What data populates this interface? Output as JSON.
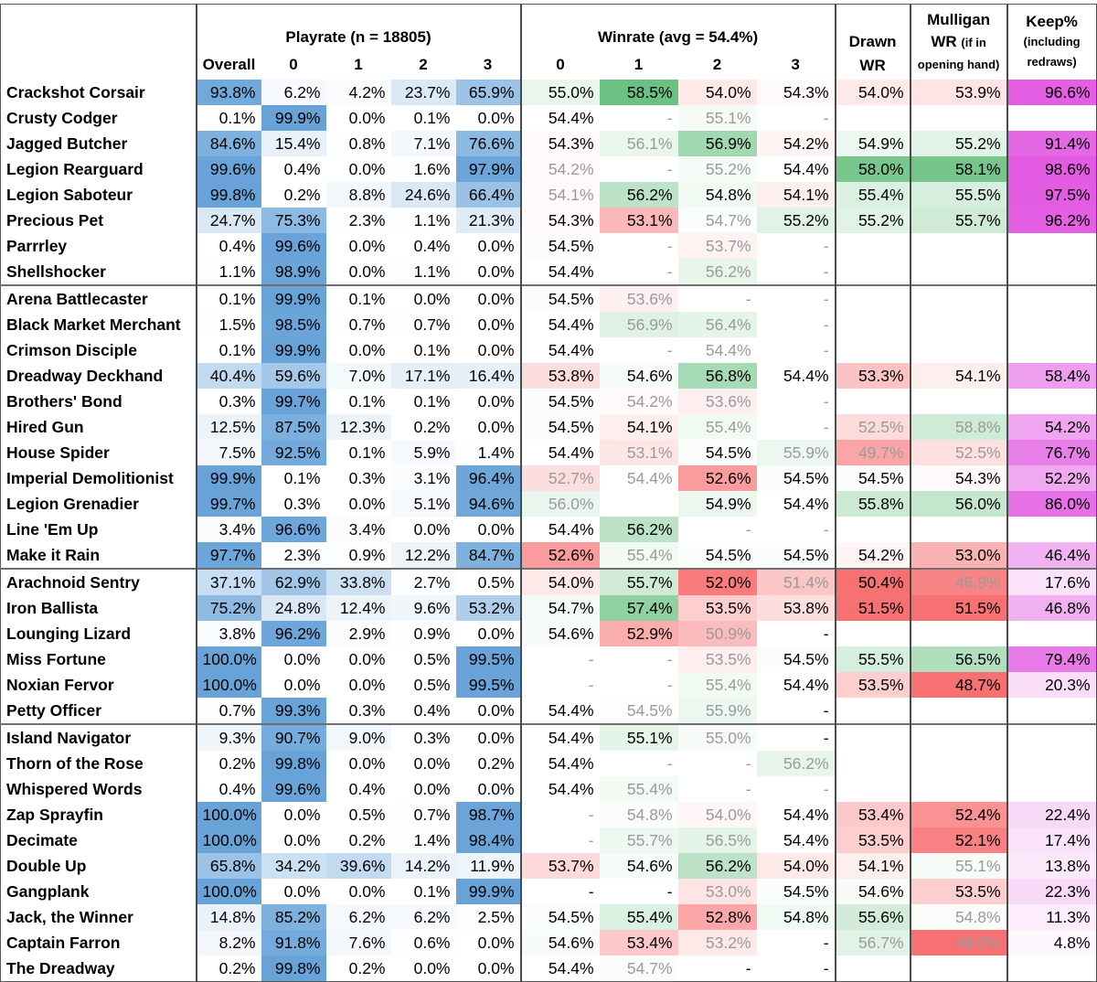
{
  "headers": {
    "playrate_group": "Playrate (n = 18805)",
    "winrate_group": "Winrate (avg = 54.4%)",
    "overall": "Overall",
    "sub_cols": [
      "0",
      "1",
      "2",
      "3"
    ],
    "drawn_line1": "Drawn",
    "drawn_line2": "WR",
    "mulligan_line1": "Mulligan",
    "mulligan_line2a": "WR",
    "mulligan_line2b": "(if in",
    "mulligan_line3": "opening hand)",
    "keep_line1": "Keep%",
    "keep_line2": "(including",
    "keep_line3": "redraws)"
  },
  "colors": {
    "blue": "#5b9bd5",
    "green": "#63be7b",
    "red": "#f8696b",
    "magenta": "#e050e0"
  },
  "groups": [
    [
      {
        "name": "Crackshot Corsair",
        "play": [
          "93.8%",
          "6.2%",
          "4.2%",
          "23.7%",
          "65.9%"
        ],
        "win": [
          "55.0%",
          "58.5%",
          "54.0%",
          "54.3%"
        ],
        "drawn": "54.0%",
        "mull": "53.9%",
        "keep": "96.6%"
      },
      {
        "name": "Crusty Codger",
        "play": [
          "0.1%",
          "99.9%",
          "0.0%",
          "0.1%",
          "0.0%"
        ],
        "win": [
          "54.4%",
          "-",
          "55.1%",
          "-"
        ],
        "drawn": "",
        "mull": "",
        "keep": ""
      },
      {
        "name": "Jagged Butcher",
        "play": [
          "84.6%",
          "15.4%",
          "0.8%",
          "7.1%",
          "76.6%"
        ],
        "win": [
          "54.3%",
          "56.1%",
          "56.9%",
          "54.2%"
        ],
        "drawn": "54.9%",
        "mull": "55.2%",
        "keep": "91.4%"
      },
      {
        "name": "Legion Rearguard",
        "play": [
          "99.6%",
          "0.4%",
          "0.0%",
          "1.6%",
          "97.9%"
        ],
        "win": [
          "54.2%",
          "-",
          "55.2%",
          "54.4%"
        ],
        "drawn": "58.0%",
        "mull": "58.1%",
        "keep": "98.6%"
      },
      {
        "name": "Legion Saboteur",
        "play": [
          "99.8%",
          "0.2%",
          "8.8%",
          "24.6%",
          "66.4%"
        ],
        "win": [
          "54.1%",
          "56.2%",
          "54.8%",
          "54.1%"
        ],
        "drawn": "55.4%",
        "mull": "55.5%",
        "keep": "97.5%"
      },
      {
        "name": "Precious Pet",
        "play": [
          "24.7%",
          "75.3%",
          "2.3%",
          "1.1%",
          "21.3%"
        ],
        "win": [
          "54.3%",
          "53.1%",
          "54.7%",
          "55.2%"
        ],
        "drawn": "55.2%",
        "mull": "55.7%",
        "keep": "96.2%"
      },
      {
        "name": "Parrrley",
        "play": [
          "0.4%",
          "99.6%",
          "0.0%",
          "0.4%",
          "0.0%"
        ],
        "win": [
          "54.5%",
          "-",
          "53.7%",
          "-"
        ],
        "drawn": "",
        "mull": "",
        "keep": ""
      },
      {
        "name": "Shellshocker",
        "play": [
          "1.1%",
          "98.9%",
          "0.0%",
          "1.1%",
          "0.0%"
        ],
        "win": [
          "54.4%",
          "-",
          "56.2%",
          "-"
        ],
        "drawn": "",
        "mull": "",
        "keep": ""
      }
    ],
    [
      {
        "name": "Arena Battlecaster",
        "play": [
          "0.1%",
          "99.9%",
          "0.1%",
          "0.0%",
          "0.0%"
        ],
        "win": [
          "54.5%",
          "53.6%",
          "-",
          "-"
        ],
        "drawn": "",
        "mull": "",
        "keep": ""
      },
      {
        "name": "Black Market Merchant",
        "play": [
          "1.5%",
          "98.5%",
          "0.7%",
          "0.7%",
          "0.0%"
        ],
        "win": [
          "54.4%",
          "56.9%",
          "56.4%",
          "-"
        ],
        "drawn": "",
        "mull": "",
        "keep": ""
      },
      {
        "name": "Crimson Disciple",
        "play": [
          "0.1%",
          "99.9%",
          "0.0%",
          "0.1%",
          "0.0%"
        ],
        "win": [
          "54.4%",
          "-",
          "54.4%",
          "-"
        ],
        "drawn": "",
        "mull": "",
        "keep": ""
      },
      {
        "name": "Dreadway Deckhand",
        "play": [
          "40.4%",
          "59.6%",
          "7.0%",
          "17.1%",
          "16.4%"
        ],
        "win": [
          "53.8%",
          "54.6%",
          "56.8%",
          "54.4%"
        ],
        "drawn": "53.3%",
        "mull": "54.1%",
        "keep": "58.4%"
      },
      {
        "name": "Brothers' Bond",
        "play": [
          "0.3%",
          "99.7%",
          "0.1%",
          "0.1%",
          "0.0%"
        ],
        "win": [
          "54.5%",
          "54.2%",
          "53.6%",
          "-"
        ],
        "drawn": "",
        "mull": "",
        "keep": ""
      },
      {
        "name": "Hired Gun",
        "play": [
          "12.5%",
          "87.5%",
          "12.3%",
          "0.2%",
          "0.0%"
        ],
        "win": [
          "54.5%",
          "54.1%",
          "55.4%",
          "-"
        ],
        "drawn": "52.5%",
        "mull": "58.8%",
        "keep": "54.2%"
      },
      {
        "name": "House Spider",
        "play": [
          "7.5%",
          "92.5%",
          "0.1%",
          "5.9%",
          "1.4%"
        ],
        "win": [
          "54.4%",
          "53.1%",
          "54.5%",
          "55.9%"
        ],
        "drawn": "49.7%",
        "mull": "52.5%",
        "keep": "76.7%"
      },
      {
        "name": "Imperial Demolitionist",
        "play": [
          "99.9%",
          "0.1%",
          "0.3%",
          "3.1%",
          "96.4%"
        ],
        "win": [
          "52.7%",
          "54.4%",
          "52.6%",
          "54.5%"
        ],
        "drawn": "54.5%",
        "mull": "54.3%",
        "keep": "52.2%"
      },
      {
        "name": "Legion Grenadier",
        "play": [
          "99.7%",
          "0.3%",
          "0.0%",
          "5.1%",
          "94.6%"
        ],
        "win": [
          "56.0%",
          "",
          "54.9%",
          "54.4%"
        ],
        "drawn": "55.8%",
        "mull": "56.0%",
        "keep": "86.0%"
      },
      {
        "name": "Line 'Em Up",
        "play": [
          "3.4%",
          "96.6%",
          "3.4%",
          "0.0%",
          "0.0%"
        ],
        "win": [
          "54.4%",
          "56.2%",
          "-",
          "-"
        ],
        "drawn": "",
        "mull": "",
        "keep": ""
      },
      {
        "name": "Make it Rain",
        "play": [
          "97.7%",
          "2.3%",
          "0.9%",
          "12.2%",
          "84.7%"
        ],
        "win": [
          "52.6%",
          "55.4%",
          "54.5%",
          "54.5%"
        ],
        "drawn": "54.2%",
        "mull": "53.0%",
        "keep": "46.4%"
      }
    ],
    [
      {
        "name": "Arachnoid Sentry",
        "play": [
          "37.1%",
          "62.9%",
          "33.8%",
          "2.7%",
          "0.5%"
        ],
        "win": [
          "54.0%",
          "55.7%",
          "52.0%",
          "51.4%"
        ],
        "drawn": "50.4%",
        "mull": "46.9%",
        "keep": "17.6%"
      },
      {
        "name": "Iron Ballista",
        "play": [
          "75.2%",
          "24.8%",
          "12.4%",
          "9.6%",
          "53.2%"
        ],
        "win": [
          "54.7%",
          "57.4%",
          "53.5%",
          "53.8%"
        ],
        "drawn": "51.5%",
        "mull": "51.5%",
        "keep": "46.8%"
      },
      {
        "name": "Lounging Lizard",
        "play": [
          "3.8%",
          "96.2%",
          "2.9%",
          "0.9%",
          "0.0%"
        ],
        "win": [
          "54.6%",
          "52.9%",
          "50.9%",
          "-"
        ],
        "drawn": "",
        "mull": "",
        "keep": ""
      },
      {
        "name": "Miss Fortune",
        "play": [
          "100.0%",
          "0.0%",
          "0.0%",
          "0.5%",
          "99.5%"
        ],
        "win": [
          "-",
          "-",
          "53.5%",
          "54.5%"
        ],
        "drawn": "55.5%",
        "mull": "56.5%",
        "keep": "79.4%"
      },
      {
        "name": "Noxian Fervor",
        "play": [
          "100.0%",
          "0.0%",
          "0.0%",
          "0.5%",
          "99.5%"
        ],
        "win": [
          "-",
          "-",
          "55.4%",
          "54.4%"
        ],
        "drawn": "53.5%",
        "mull": "48.7%",
        "keep": "20.3%"
      },
      {
        "name": "Petty Officer",
        "play": [
          "0.7%",
          "99.3%",
          "0.3%",
          "0.4%",
          "0.0%"
        ],
        "win": [
          "54.4%",
          "54.5%",
          "55.9%",
          "-"
        ],
        "drawn": "",
        "mull": "",
        "keep": ""
      }
    ],
    [
      {
        "name": "Island Navigator",
        "play": [
          "9.3%",
          "90.7%",
          "9.0%",
          "0.3%",
          "0.0%"
        ],
        "win": [
          "54.4%",
          "55.1%",
          "55.0%",
          "-"
        ],
        "drawn": "",
        "mull": "",
        "keep": ""
      },
      {
        "name": "Thorn of the Rose",
        "play": [
          "0.2%",
          "99.8%",
          "0.0%",
          "0.0%",
          "0.2%"
        ],
        "win": [
          "54.4%",
          "-",
          "-",
          "56.2%"
        ],
        "drawn": "",
        "mull": "",
        "keep": ""
      },
      {
        "name": "Whispered Words",
        "play": [
          "0.4%",
          "99.6%",
          "0.4%",
          "0.0%",
          "0.0%"
        ],
        "win": [
          "54.4%",
          "55.4%",
          "-",
          "-"
        ],
        "drawn": "",
        "mull": "",
        "keep": ""
      },
      {
        "name": "Zap Sprayfin",
        "play": [
          "100.0%",
          "0.0%",
          "0.5%",
          "0.7%",
          "98.7%"
        ],
        "win": [
          "-",
          "54.8%",
          "54.0%",
          "54.4%"
        ],
        "drawn": "53.4%",
        "mull": "52.4%",
        "keep": "22.4%"
      },
      {
        "name": "Decimate",
        "play": [
          "100.0%",
          "0.0%",
          "0.2%",
          "1.4%",
          "98.4%"
        ],
        "win": [
          "-",
          "55.7%",
          "56.5%",
          "54.4%"
        ],
        "drawn": "53.5%",
        "mull": "52.1%",
        "keep": "17.4%"
      },
      {
        "name": "Double Up",
        "play": [
          "65.8%",
          "34.2%",
          "39.6%",
          "14.2%",
          "11.9%"
        ],
        "win": [
          "53.7%",
          "54.6%",
          "56.2%",
          "54.0%"
        ],
        "drawn": "54.1%",
        "mull": "55.1%",
        "keep": "13.8%"
      },
      {
        "name": "Gangplank",
        "play": [
          "100.0%",
          "0.0%",
          "0.0%",
          "0.1%",
          "99.9%"
        ],
        "win": [
          "-",
          "-",
          "53.0%",
          "54.5%"
        ],
        "drawn": "54.6%",
        "mull": "53.5%",
        "keep": "22.3%"
      },
      {
        "name": "Jack, the Winner",
        "play": [
          "14.8%",
          "85.2%",
          "6.2%",
          "6.2%",
          "2.5%"
        ],
        "win": [
          "54.5%",
          "55.4%",
          "52.8%",
          "54.8%"
        ],
        "drawn": "55.6%",
        "mull": "54.8%",
        "keep": "11.3%"
      },
      {
        "name": "Captain Farron",
        "play": [
          "8.2%",
          "91.8%",
          "7.6%",
          "0.6%",
          "0.0%"
        ],
        "win": [
          "54.6%",
          "53.4%",
          "53.2%",
          "-"
        ],
        "drawn": "56.7%",
        "mull": "40.0%",
        "keep": "4.8%"
      },
      {
        "name": "The Dreadway",
        "play": [
          "0.2%",
          "99.8%",
          "0.2%",
          "0.0%",
          "0.0%"
        ],
        "win": [
          "54.4%",
          "54.7%",
          "-",
          "-"
        ],
        "drawn": "",
        "mull": "",
        "keep": ""
      }
    ]
  ],
  "muted_cells": [
    "Crusty Codger|win1",
    "Crusty Codger|win2",
    "Crusty Codger|win3",
    "Jagged Butcher|win1",
    "Legion Rearguard|win0",
    "Legion Rearguard|win1",
    "Legion Rearguard|win2",
    "Legion Saboteur|win0",
    "Precious Pet|win2",
    "Parrrley|win1",
    "Parrrley|win2",
    "Parrrley|win3",
    "Shellshocker|win1",
    "Shellshocker|win2",
    "Shellshocker|win3",
    "Arena Battlecaster|win1",
    "Arena Battlecaster|win2",
    "Arena Battlecaster|win3",
    "Black Market Merchant|win1",
    "Black Market Merchant|win2",
    "Black Market Merchant|win3",
    "Crimson Disciple|win1",
    "Crimson Disciple|win2",
    "Crimson Disciple|win3",
    "Brothers' Bond|win1",
    "Brothers' Bond|win2",
    "Brothers' Bond|win3",
    "Hired Gun|win2",
    "Hired Gun|win3",
    "Hired Gun|drawn",
    "Hired Gun|mull",
    "House Spider|win1",
    "House Spider|win3",
    "House Spider|drawn",
    "House Spider|mull",
    "Imperial Demolitionist|win0",
    "Imperial Demolitionist|win1",
    "Legion Grenadier|win0",
    "Line 'Em Up|win2",
    "Line 'Em Up|win3",
    "Make it Rain|win1",
    "Arachnoid Sentry|win3",
    "Arachnoid Sentry|mull",
    "Lounging Lizard|win2",
    "Miss Fortune|win0",
    "Miss Fortune|win1",
    "Miss Fortune|win2",
    "Noxian Fervor|win0",
    "Noxian Fervor|win1",
    "Noxian Fervor|win2",
    "Petty Officer|win1",
    "Petty Officer|win2",
    "Island Navigator|win2",
    "Thorn of the Rose|win1",
    "Thorn of the Rose|win2",
    "Thorn of the Rose|win3",
    "Whispered Words|win1",
    "Whispered Words|win2",
    "Whispered Words|win3",
    "Zap Sprayfin|win0",
    "Zap Sprayfin|win1",
    "Zap Sprayfin|win2",
    "Decimate|win0",
    "Decimate|win1",
    "Decimate|win2",
    "Double Up|mull",
    "Gangplank|win2",
    "Jack, the Winner|mull",
    "Captain Farron|win2",
    "Captain Farron|drawn",
    "Captain Farron|mull",
    "The Dreadway|win1"
  ]
}
